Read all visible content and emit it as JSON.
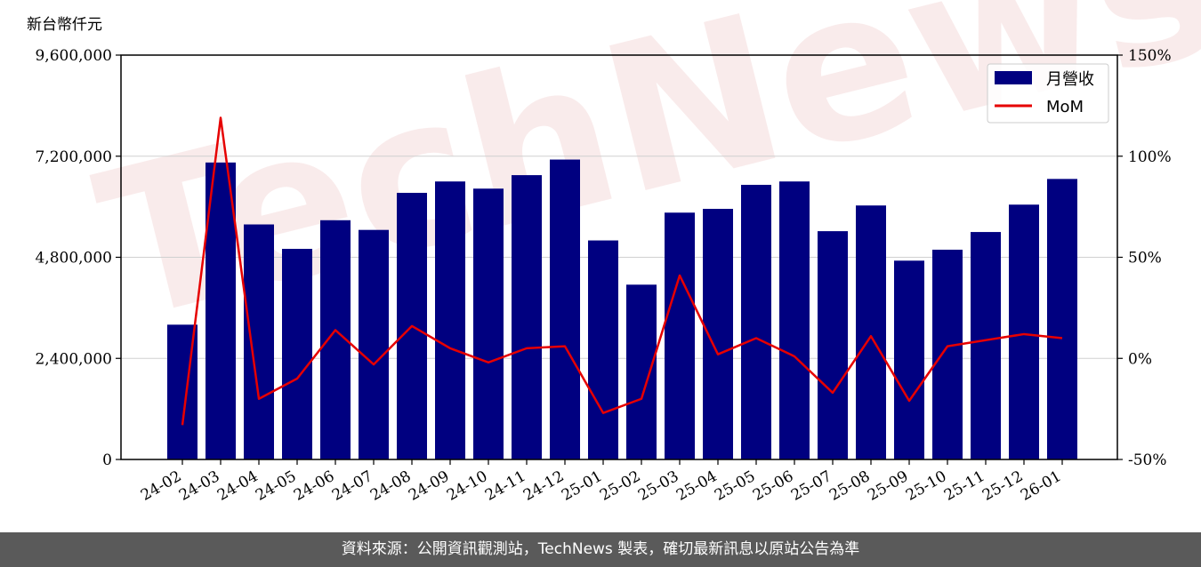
{
  "chart_data": {
    "type": "bar",
    "ylabel": "新台幣仟元",
    "categories": [
      "24-02",
      "24-03",
      "24-04",
      "24-05",
      "24-06",
      "24-07",
      "24-08",
      "24-09",
      "24-10",
      "24-11",
      "24-12",
      "25-01",
      "25-02",
      "25-03",
      "25-04",
      "25-05",
      "25-06",
      "25-07",
      "25-08",
      "25-09",
      "25-10",
      "25-11",
      "25-12",
      "26-01"
    ],
    "series": [
      {
        "name": "月營收",
        "type": "bar",
        "axis": "left",
        "color": "#000080",
        "values": [
          3200000,
          7050000,
          5580000,
          5000000,
          5680000,
          5450000,
          6330000,
          6600000,
          6430000,
          6750000,
          7120000,
          5200000,
          4150000,
          5860000,
          5950000,
          6520000,
          6600000,
          5420000,
          6030000,
          4720000,
          4980000,
          5400000,
          6050000,
          6660000
        ]
      },
      {
        "name": "MoM",
        "type": "line",
        "axis": "right",
        "color": "#e60000",
        "values": [
          -33,
          119,
          -20,
          -10,
          14,
          -3,
          16,
          5,
          -2,
          5,
          6,
          -27,
          -20,
          41,
          2,
          10,
          1,
          -17,
          11,
          -21,
          6,
          9,
          12,
          10
        ]
      }
    ],
    "y_left": {
      "range": [
        0,
        9600000
      ],
      "ticks": [
        0,
        2400000,
        4800000,
        7200000,
        9600000
      ],
      "tick_labels": [
        "0",
        "2,400,000",
        "4,800,000",
        "7,200,000",
        "9,600,000"
      ]
    },
    "y_right": {
      "range": [
        -50,
        150
      ],
      "ticks": [
        -50,
        0,
        50,
        100,
        150
      ],
      "tick_labels": [
        "-50%",
        "0%",
        "50%",
        "100%",
        "150%"
      ]
    },
    "grid": true,
    "legend": "top-right",
    "watermark": "TechNews"
  },
  "footer": {
    "text": "資料來源：公開資訊觀測站，TechNews 製表，確切最新訊息以原站公告為準"
  }
}
